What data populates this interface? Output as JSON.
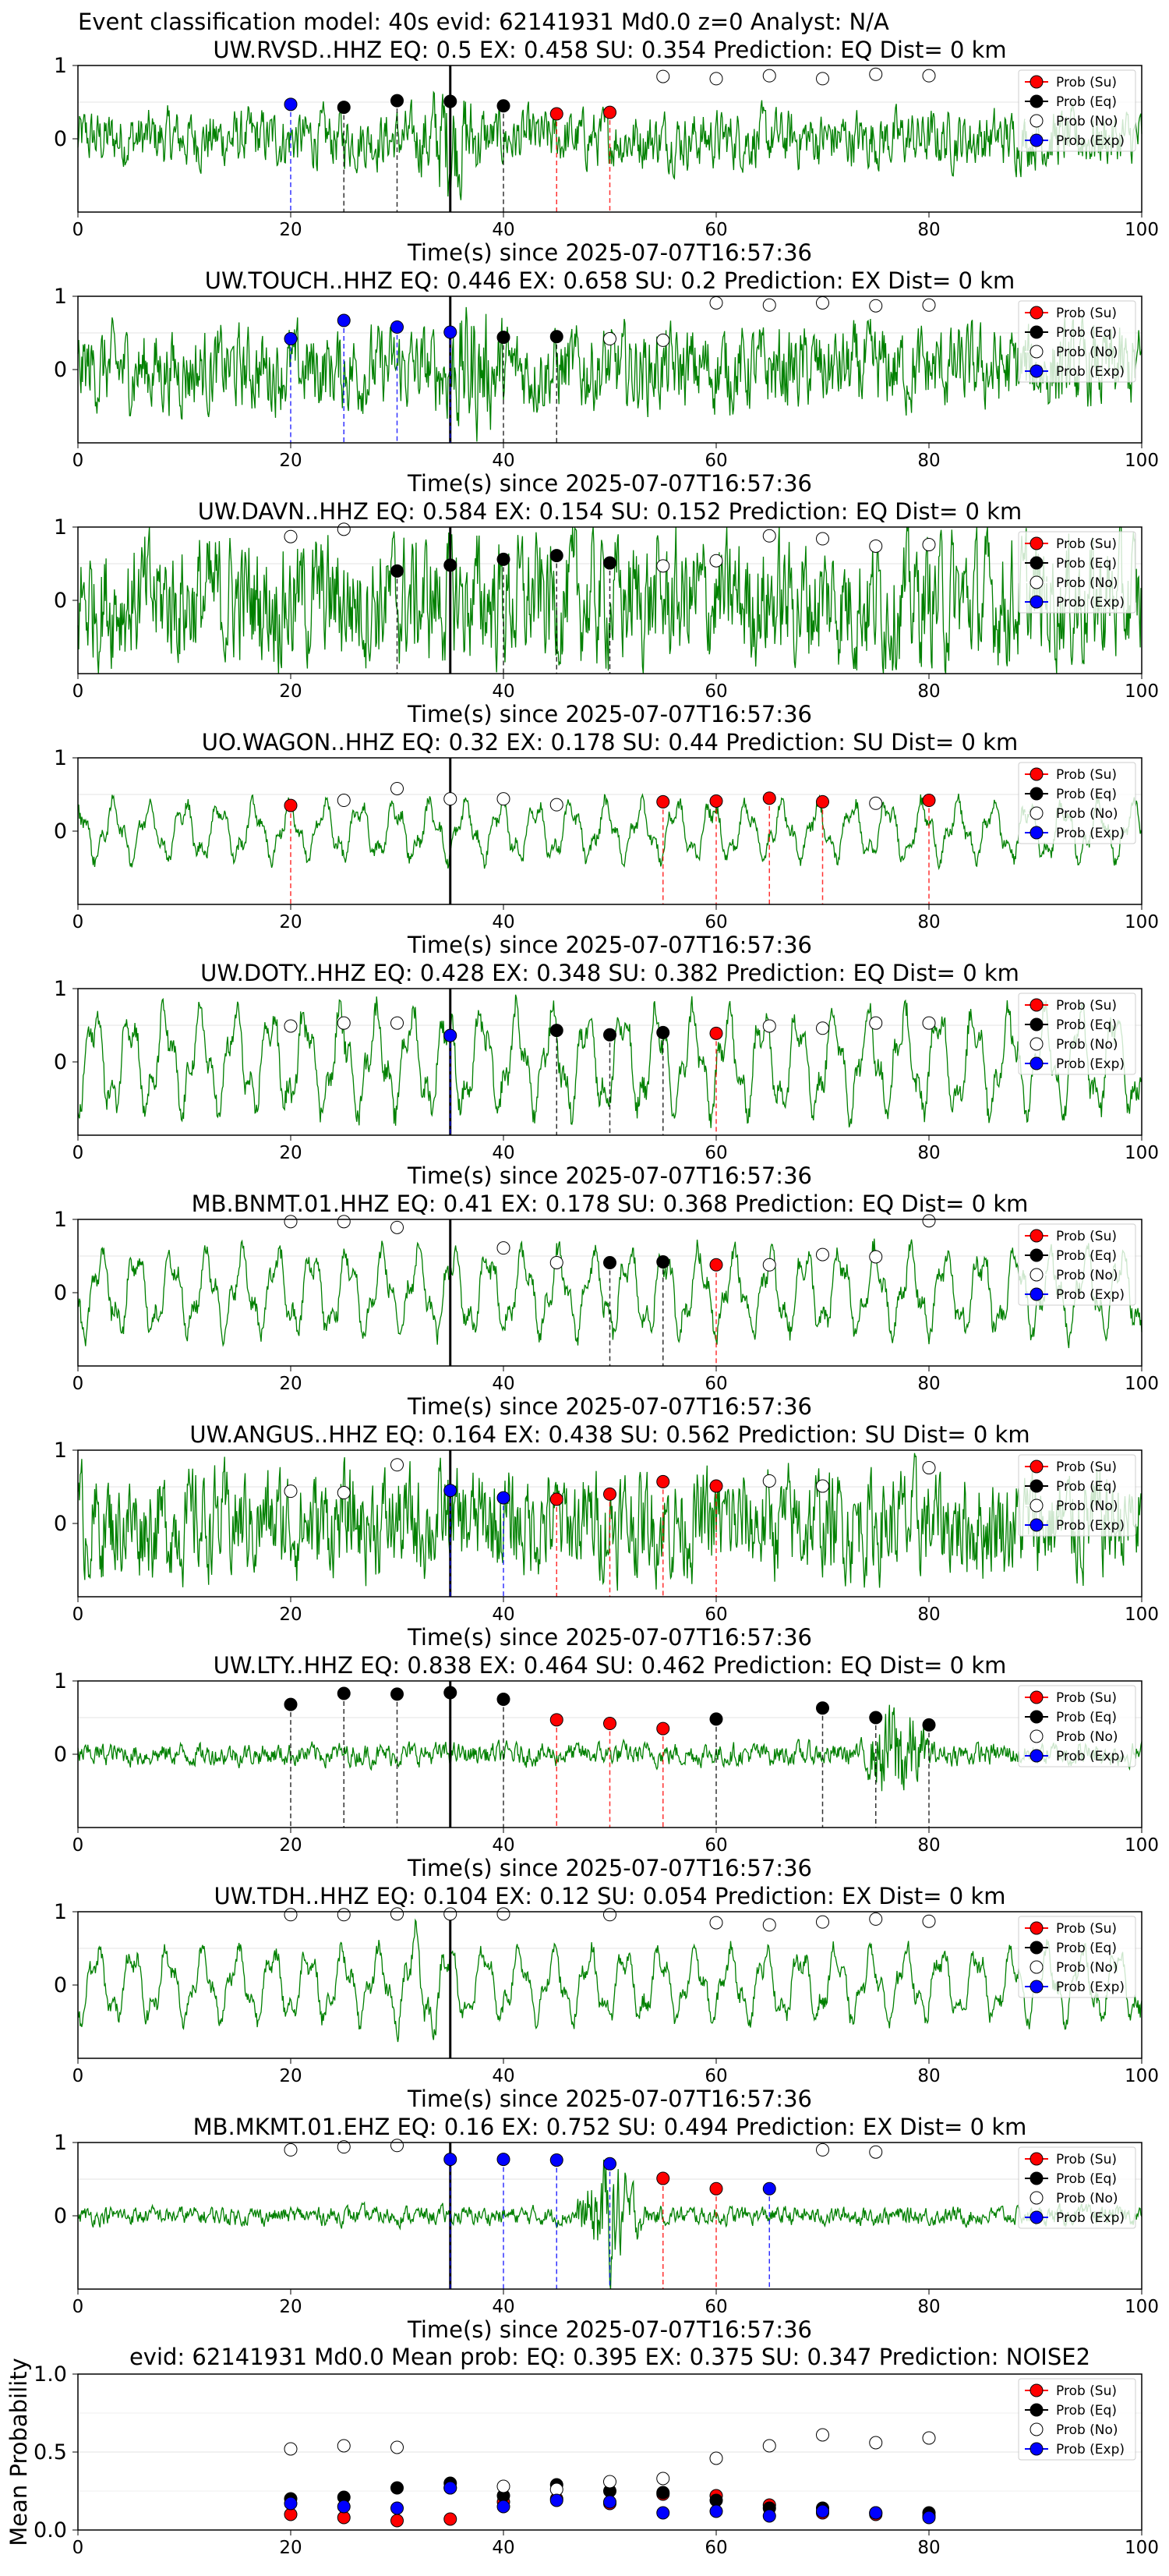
{
  "header": "Event classification model: 40s evid: 62141931 Md0.0 z=0 Analyst: N/A",
  "legend_labels": [
    "Prob (Su)",
    "Prob (Eq)",
    "Prob (No)",
    "Prob (Exp)"
  ],
  "colors": {
    "su": "#ff0000",
    "eq": "#000000",
    "no": "#ffffff",
    "exp": "#0000ff",
    "trace": "#008000"
  },
  "chart_data": [
    {
      "type": "scatter",
      "title": "UW.RVSD..HHZ   EQ: 0.5   EX: 0.458   SU: 0.354    Prediction: EQ    Dist= 0 km",
      "xlabel": "Time(s) since 2025-07-07T16:57:36",
      "xlim": [
        0,
        100
      ],
      "ylim": [
        -1,
        1
      ],
      "xticks": [
        0,
        20,
        40,
        60,
        80,
        100
      ],
      "yticks": [
        0,
        1
      ],
      "t_marker": 35,
      "trace_amp": 0.38,
      "burst": {
        "at": 35,
        "amp": 0.85
      },
      "points": [
        {
          "x": 20,
          "y": 0.47,
          "c": "exp"
        },
        {
          "x": 25,
          "y": 0.43,
          "c": "eq"
        },
        {
          "x": 30,
          "y": 0.52,
          "c": "eq"
        },
        {
          "x": 35,
          "y": 0.51,
          "c": "eq"
        },
        {
          "x": 40,
          "y": 0.45,
          "c": "eq"
        },
        {
          "x": 45,
          "y": 0.34,
          "c": "su"
        },
        {
          "x": 50,
          "y": 0.36,
          "c": "su"
        },
        {
          "x": 55,
          "y": 0.85,
          "c": "no"
        },
        {
          "x": 60,
          "y": 0.82,
          "c": "no"
        },
        {
          "x": 65,
          "y": 0.86,
          "c": "no"
        },
        {
          "x": 70,
          "y": 0.82,
          "c": "no"
        },
        {
          "x": 75,
          "y": 0.88,
          "c": "no"
        },
        {
          "x": 80,
          "y": 0.86,
          "c": "no"
        }
      ]
    },
    {
      "type": "scatter",
      "title": "UW.TOUCH..HHZ   EQ: 0.446   EX: 0.658   SU: 0.2    Prediction: EX    Dist= 0 km",
      "xlabel": "Time(s) since 2025-07-07T16:57:36",
      "xlim": [
        0,
        100
      ],
      "ylim": [
        -1,
        1
      ],
      "xticks": [
        0,
        20,
        40,
        60,
        80,
        100
      ],
      "yticks": [
        0,
        1
      ],
      "t_marker": 35,
      "trace_amp": 0.55,
      "burst": {
        "at": 37,
        "amp": 0.95
      },
      "points": [
        {
          "x": 20,
          "y": 0.42,
          "c": "exp"
        },
        {
          "x": 25,
          "y": 0.67,
          "c": "exp"
        },
        {
          "x": 30,
          "y": 0.58,
          "c": "exp"
        },
        {
          "x": 35,
          "y": 0.51,
          "c": "exp"
        },
        {
          "x": 40,
          "y": 0.44,
          "c": "eq"
        },
        {
          "x": 45,
          "y": 0.45,
          "c": "eq"
        },
        {
          "x": 50,
          "y": 0.42,
          "c": "no"
        },
        {
          "x": 55,
          "y": 0.4,
          "c": "no"
        },
        {
          "x": 60,
          "y": 0.91,
          "c": "no"
        },
        {
          "x": 65,
          "y": 0.88,
          "c": "no"
        },
        {
          "x": 70,
          "y": 0.91,
          "c": "no"
        },
        {
          "x": 75,
          "y": 0.87,
          "c": "no"
        },
        {
          "x": 80,
          "y": 0.88,
          "c": "no"
        }
      ]
    },
    {
      "type": "scatter",
      "title": "UW.DAVN..HHZ   EQ: 0.584   EX: 0.154   SU: 0.152    Prediction: EQ    Dist= 0 km",
      "xlabel": "Time(s) since 2025-07-07T16:57:36",
      "xlim": [
        0,
        100
      ],
      "ylim": [
        -1,
        1
      ],
      "xticks": [
        0,
        20,
        40,
        60,
        80,
        100
      ],
      "yticks": [
        0,
        1
      ],
      "t_marker": 35,
      "trace_amp": 0.85,
      "burst": null,
      "points": [
        {
          "x": 20,
          "y": 0.87,
          "c": "no"
        },
        {
          "x": 25,
          "y": 0.97,
          "c": "no"
        },
        {
          "x": 30,
          "y": 0.4,
          "c": "eq"
        },
        {
          "x": 35,
          "y": 0.48,
          "c": "eq"
        },
        {
          "x": 40,
          "y": 0.56,
          "c": "eq"
        },
        {
          "x": 45,
          "y": 0.61,
          "c": "eq"
        },
        {
          "x": 50,
          "y": 0.51,
          "c": "eq"
        },
        {
          "x": 55,
          "y": 0.47,
          "c": "no"
        },
        {
          "x": 60,
          "y": 0.54,
          "c": "no"
        },
        {
          "x": 65,
          "y": 0.88,
          "c": "no"
        },
        {
          "x": 70,
          "y": 0.84,
          "c": "no"
        },
        {
          "x": 75,
          "y": 0.74,
          "c": "no"
        },
        {
          "x": 80,
          "y": 0.76,
          "c": "no"
        }
      ]
    },
    {
      "type": "scatter",
      "title": "UO.WAGON..HHZ   EQ: 0.32   EX: 0.178   SU: 0.44    Prediction: SU    Dist= 0 km",
      "xlabel": "Time(s) since 2025-07-07T16:57:36",
      "xlim": [
        0,
        100
      ],
      "ylim": [
        -1,
        1
      ],
      "xticks": [
        0,
        20,
        40,
        60,
        80,
        100
      ],
      "yticks": [
        0,
        1
      ],
      "t_marker": 35,
      "trace_amp": 0.45,
      "burst": null,
      "smooth": true,
      "points": [
        {
          "x": 20,
          "y": 0.35,
          "c": "su"
        },
        {
          "x": 25,
          "y": 0.42,
          "c": "no"
        },
        {
          "x": 30,
          "y": 0.58,
          "c": "no"
        },
        {
          "x": 35,
          "y": 0.44,
          "c": "no"
        },
        {
          "x": 40,
          "y": 0.44,
          "c": "no"
        },
        {
          "x": 45,
          "y": 0.36,
          "c": "no"
        },
        {
          "x": 55,
          "y": 0.4,
          "c": "su"
        },
        {
          "x": 60,
          "y": 0.41,
          "c": "su"
        },
        {
          "x": 65,
          "y": 0.45,
          "c": "su"
        },
        {
          "x": 70,
          "y": 0.4,
          "c": "su"
        },
        {
          "x": 75,
          "y": 0.38,
          "c": "no"
        },
        {
          "x": 80,
          "y": 0.42,
          "c": "su"
        }
      ]
    },
    {
      "type": "scatter",
      "title": "UW.DOTY..HHZ   EQ: 0.428   EX: 0.348   SU: 0.382    Prediction: EQ    Dist= 0 km",
      "xlabel": "Time(s) since 2025-07-07T16:57:36",
      "xlim": [
        0,
        100
      ],
      "ylim": [
        -1,
        1
      ],
      "xticks": [
        0,
        20,
        40,
        60,
        80,
        100
      ],
      "yticks": [
        0,
        1
      ],
      "t_marker": 35,
      "trace_amp": 0.8,
      "burst": null,
      "smooth": true,
      "points": [
        {
          "x": 20,
          "y": 0.49,
          "c": "no"
        },
        {
          "x": 25,
          "y": 0.53,
          "c": "no"
        },
        {
          "x": 30,
          "y": 0.53,
          "c": "no"
        },
        {
          "x": 35,
          "y": 0.36,
          "c": "exp"
        },
        {
          "x": 45,
          "y": 0.43,
          "c": "eq"
        },
        {
          "x": 50,
          "y": 0.37,
          "c": "eq"
        },
        {
          "x": 55,
          "y": 0.4,
          "c": "eq"
        },
        {
          "x": 60,
          "y": 0.39,
          "c": "su"
        },
        {
          "x": 65,
          "y": 0.49,
          "c": "no"
        },
        {
          "x": 70,
          "y": 0.46,
          "c": "no"
        },
        {
          "x": 75,
          "y": 0.53,
          "c": "no"
        },
        {
          "x": 80,
          "y": 0.53,
          "c": "no"
        }
      ]
    },
    {
      "type": "scatter",
      "title": "MB.BNMT.01.HHZ   EQ: 0.41   EX: 0.178   SU: 0.368    Prediction: EQ    Dist= 0 km",
      "xlabel": "Time(s) since 2025-07-07T16:57:36",
      "xlim": [
        0,
        100
      ],
      "ylim": [
        -1,
        1
      ],
      "xticks": [
        0,
        20,
        40,
        60,
        80,
        100
      ],
      "yticks": [
        0,
        1
      ],
      "t_marker": 35,
      "trace_amp": 0.65,
      "burst": null,
      "smooth": true,
      "points": [
        {
          "x": 20,
          "y": 0.97,
          "c": "no"
        },
        {
          "x": 25,
          "y": 0.97,
          "c": "no"
        },
        {
          "x": 30,
          "y": 0.89,
          "c": "no"
        },
        {
          "x": 40,
          "y": 0.61,
          "c": "no"
        },
        {
          "x": 45,
          "y": 0.41,
          "c": "no"
        },
        {
          "x": 50,
          "y": 0.41,
          "c": "eq"
        },
        {
          "x": 55,
          "y": 0.42,
          "c": "eq"
        },
        {
          "x": 60,
          "y": 0.38,
          "c": "su"
        },
        {
          "x": 65,
          "y": 0.38,
          "c": "no"
        },
        {
          "x": 70,
          "y": 0.52,
          "c": "no"
        },
        {
          "x": 75,
          "y": 0.49,
          "c": "no"
        },
        {
          "x": 80,
          "y": 0.98,
          "c": "no"
        }
      ]
    },
    {
      "type": "scatter",
      "title": "UW.ANGUS..HHZ   EQ: 0.164   EX: 0.438   SU: 0.562    Prediction: SU    Dist= 0 km",
      "xlabel": "Time(s) since 2025-07-07T16:57:36",
      "xlim": [
        0,
        100
      ],
      "ylim": [
        -1,
        1
      ],
      "xticks": [
        0,
        20,
        40,
        60,
        80,
        100
      ],
      "yticks": [
        0,
        1
      ],
      "t_marker": 35,
      "trace_amp": 0.7,
      "burst": null,
      "points": [
        {
          "x": 20,
          "y": 0.44,
          "c": "no"
        },
        {
          "x": 25,
          "y": 0.42,
          "c": "no"
        },
        {
          "x": 30,
          "y": 0.8,
          "c": "no"
        },
        {
          "x": 35,
          "y": 0.45,
          "c": "exp"
        },
        {
          "x": 40,
          "y": 0.35,
          "c": "exp"
        },
        {
          "x": 45,
          "y": 0.33,
          "c": "su"
        },
        {
          "x": 50,
          "y": 0.4,
          "c": "su"
        },
        {
          "x": 55,
          "y": 0.57,
          "c": "su"
        },
        {
          "x": 60,
          "y": 0.51,
          "c": "su"
        },
        {
          "x": 65,
          "y": 0.58,
          "c": "no"
        },
        {
          "x": 70,
          "y": 0.51,
          "c": "no"
        },
        {
          "x": 80,
          "y": 0.76,
          "c": "no"
        }
      ]
    },
    {
      "type": "scatter",
      "title": "UW.LTY..HHZ   EQ: 0.838   EX: 0.464   SU: 0.462    Prediction: EQ    Dist= 0 km",
      "xlabel": "Time(s) since 2025-07-07T16:57:36",
      "xlim": [
        0,
        100
      ],
      "ylim": [
        -1,
        1
      ],
      "xticks": [
        0,
        20,
        40,
        60,
        80,
        100
      ],
      "yticks": [
        0,
        1
      ],
      "t_marker": 35,
      "trace_amp": 0.15,
      "burst": {
        "at": 77,
        "amp": 0.9
      },
      "points": [
        {
          "x": 20,
          "y": 0.68,
          "c": "eq"
        },
        {
          "x": 25,
          "y": 0.83,
          "c": "eq"
        },
        {
          "x": 30,
          "y": 0.82,
          "c": "eq"
        },
        {
          "x": 35,
          "y": 0.84,
          "c": "eq"
        },
        {
          "x": 40,
          "y": 0.75,
          "c": "eq"
        },
        {
          "x": 45,
          "y": 0.47,
          "c": "su"
        },
        {
          "x": 50,
          "y": 0.42,
          "c": "su"
        },
        {
          "x": 55,
          "y": 0.35,
          "c": "su"
        },
        {
          "x": 60,
          "y": 0.48,
          "c": "eq"
        },
        {
          "x": 70,
          "y": 0.63,
          "c": "eq"
        },
        {
          "x": 75,
          "y": 0.5,
          "c": "eq"
        },
        {
          "x": 80,
          "y": 0.4,
          "c": "eq"
        }
      ]
    },
    {
      "type": "scatter",
      "title": "UW.TDH..HHZ   EQ: 0.104   EX: 0.12   SU: 0.054    Prediction: EX    Dist= 0 km",
      "xlabel": "Time(s) since 2025-07-07T16:57:36",
      "xlim": [
        0,
        100
      ],
      "ylim": [
        -1,
        1
      ],
      "xticks": [
        0,
        20,
        40,
        60,
        80,
        100
      ],
      "yticks": [
        0,
        1
      ],
      "t_marker": 35,
      "trace_amp": 0.55,
      "burst": {
        "at": 32,
        "amp": 0.9
      },
      "smooth": true,
      "points": [
        {
          "x": 20,
          "y": 0.96,
          "c": "no"
        },
        {
          "x": 25,
          "y": 0.96,
          "c": "no"
        },
        {
          "x": 30,
          "y": 0.97,
          "c": "no"
        },
        {
          "x": 35,
          "y": 0.97,
          "c": "no"
        },
        {
          "x": 40,
          "y": 0.97,
          "c": "no"
        },
        {
          "x": 50,
          "y": 0.96,
          "c": "no"
        },
        {
          "x": 60,
          "y": 0.85,
          "c": "no"
        },
        {
          "x": 65,
          "y": 0.82,
          "c": "no"
        },
        {
          "x": 70,
          "y": 0.86,
          "c": "no"
        },
        {
          "x": 75,
          "y": 0.9,
          "c": "no"
        },
        {
          "x": 80,
          "y": 0.87,
          "c": "no"
        }
      ]
    },
    {
      "type": "scatter",
      "title": "MB.MKMT.01.EHZ   EQ: 0.16   EX: 0.752   SU: 0.494    Prediction: EX    Dist= 0 km",
      "xlabel": "Time(s) since 2025-07-07T16:57:36",
      "xlim": [
        0,
        100
      ],
      "ylim": [
        -1,
        1
      ],
      "xticks": [
        0,
        20,
        40,
        60,
        80,
        100
      ],
      "yticks": [
        0,
        1
      ],
      "t_marker": 35,
      "trace_amp": 0.12,
      "burst": {
        "at": 50,
        "amp": 0.85
      },
      "points": [
        {
          "x": 20,
          "y": 0.9,
          "c": "no"
        },
        {
          "x": 25,
          "y": 0.94,
          "c": "no"
        },
        {
          "x": 30,
          "y": 0.96,
          "c": "no"
        },
        {
          "x": 35,
          "y": 0.77,
          "c": "exp"
        },
        {
          "x": 40,
          "y": 0.77,
          "c": "exp"
        },
        {
          "x": 45,
          "y": 0.76,
          "c": "exp"
        },
        {
          "x": 50,
          "y": 0.71,
          "c": "exp"
        },
        {
          "x": 55,
          "y": 0.51,
          "c": "su"
        },
        {
          "x": 60,
          "y": 0.37,
          "c": "su"
        },
        {
          "x": 65,
          "y": 0.37,
          "c": "exp"
        },
        {
          "x": 70,
          "y": 0.9,
          "c": "no"
        },
        {
          "x": 75,
          "y": 0.87,
          "c": "no"
        }
      ]
    }
  ],
  "mean_chart": {
    "type": "scatter",
    "title": "evid: 62141931   Md0.0    Mean prob:    EQ: 0.395   EX: 0.375   SU: 0.347    Prediction: NOISE2",
    "ylabel": "Mean Probability",
    "xlim": [
      0,
      100
    ],
    "ylim": [
      0,
      1
    ],
    "xticks": [
      0,
      20,
      40,
      60,
      80,
      100
    ],
    "yticks": [
      0.0,
      0.5,
      1.0
    ],
    "series": [
      {
        "name": "Prob (Su)",
        "c": "su",
        "x": [
          20,
          25,
          30,
          35,
          40,
          45,
          50,
          55,
          60,
          65,
          70,
          75,
          80
        ],
        "y": [
          0.1,
          0.08,
          0.06,
          0.07,
          0.18,
          0.2,
          0.17,
          0.23,
          0.22,
          0.16,
          0.11,
          0.1,
          0.09
        ]
      },
      {
        "name": "Prob (Eq)",
        "c": "eq",
        "x": [
          20,
          25,
          30,
          35,
          40,
          45,
          50,
          55,
          60,
          65,
          70,
          75,
          80
        ],
        "y": [
          0.2,
          0.21,
          0.27,
          0.3,
          0.22,
          0.29,
          0.25,
          0.24,
          0.19,
          0.14,
          0.14,
          0.11,
          0.11
        ]
      },
      {
        "name": "Prob (No)",
        "c": "no",
        "x": [
          20,
          25,
          30,
          35,
          40,
          45,
          50,
          55,
          60,
          65,
          70,
          75,
          80
        ],
        "y": [
          0.52,
          0.54,
          0.53,
          0.27,
          0.28,
          0.26,
          0.31,
          0.33,
          0.46,
          0.54,
          0.61,
          0.56,
          0.59
        ]
      },
      {
        "name": "Prob (Exp)",
        "c": "exp",
        "x": [
          20,
          25,
          30,
          35,
          40,
          45,
          50,
          55,
          60,
          65,
          70,
          75,
          80
        ],
        "y": [
          0.17,
          0.15,
          0.14,
          0.27,
          0.15,
          0.19,
          0.18,
          0.11,
          0.12,
          0.09,
          0.12,
          0.11,
          0.08
        ]
      }
    ]
  }
}
